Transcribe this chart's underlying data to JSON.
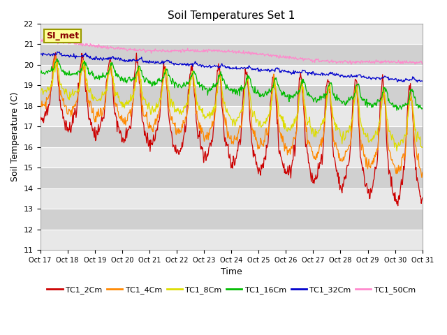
{
  "title": "Soil Temperatures Set 1",
  "xlabel": "Time",
  "ylabel": "Soil Temperature (C)",
  "ylim": [
    11.0,
    22.0
  ],
  "yticks": [
    11.0,
    12.0,
    13.0,
    14.0,
    15.0,
    16.0,
    17.0,
    18.0,
    19.0,
    20.0,
    21.0,
    22.0
  ],
  "xtick_labels": [
    "Oct 17",
    "Oct 18",
    "Oct 19",
    "Oct 20",
    "Oct 21",
    "Oct 22",
    "Oct 23",
    "Oct 24",
    "Oct 25",
    "Oct 26",
    "Oct 27",
    "Oct 28",
    "Oct 29",
    "Oct 30",
    "Oct 31"
  ],
  "line_colors": [
    "#cc0000",
    "#ff8800",
    "#dddd00",
    "#00bb00",
    "#0000cc",
    "#ff88cc"
  ],
  "line_labels": [
    "TC1_2Cm",
    "TC1_4Cm",
    "TC1_8Cm",
    "TC1_16Cm",
    "TC1_32Cm",
    "TC1_50Cm"
  ],
  "background_color": "#ffffff",
  "plot_bg_light": "#e8e8e8",
  "plot_bg_dark": "#d0d0d0",
  "grid_color": "#ffffff",
  "si_met_label": "SI_met",
  "si_met_bg": "#ffff99",
  "si_met_fg": "#880000",
  "si_met_border": "#999900"
}
